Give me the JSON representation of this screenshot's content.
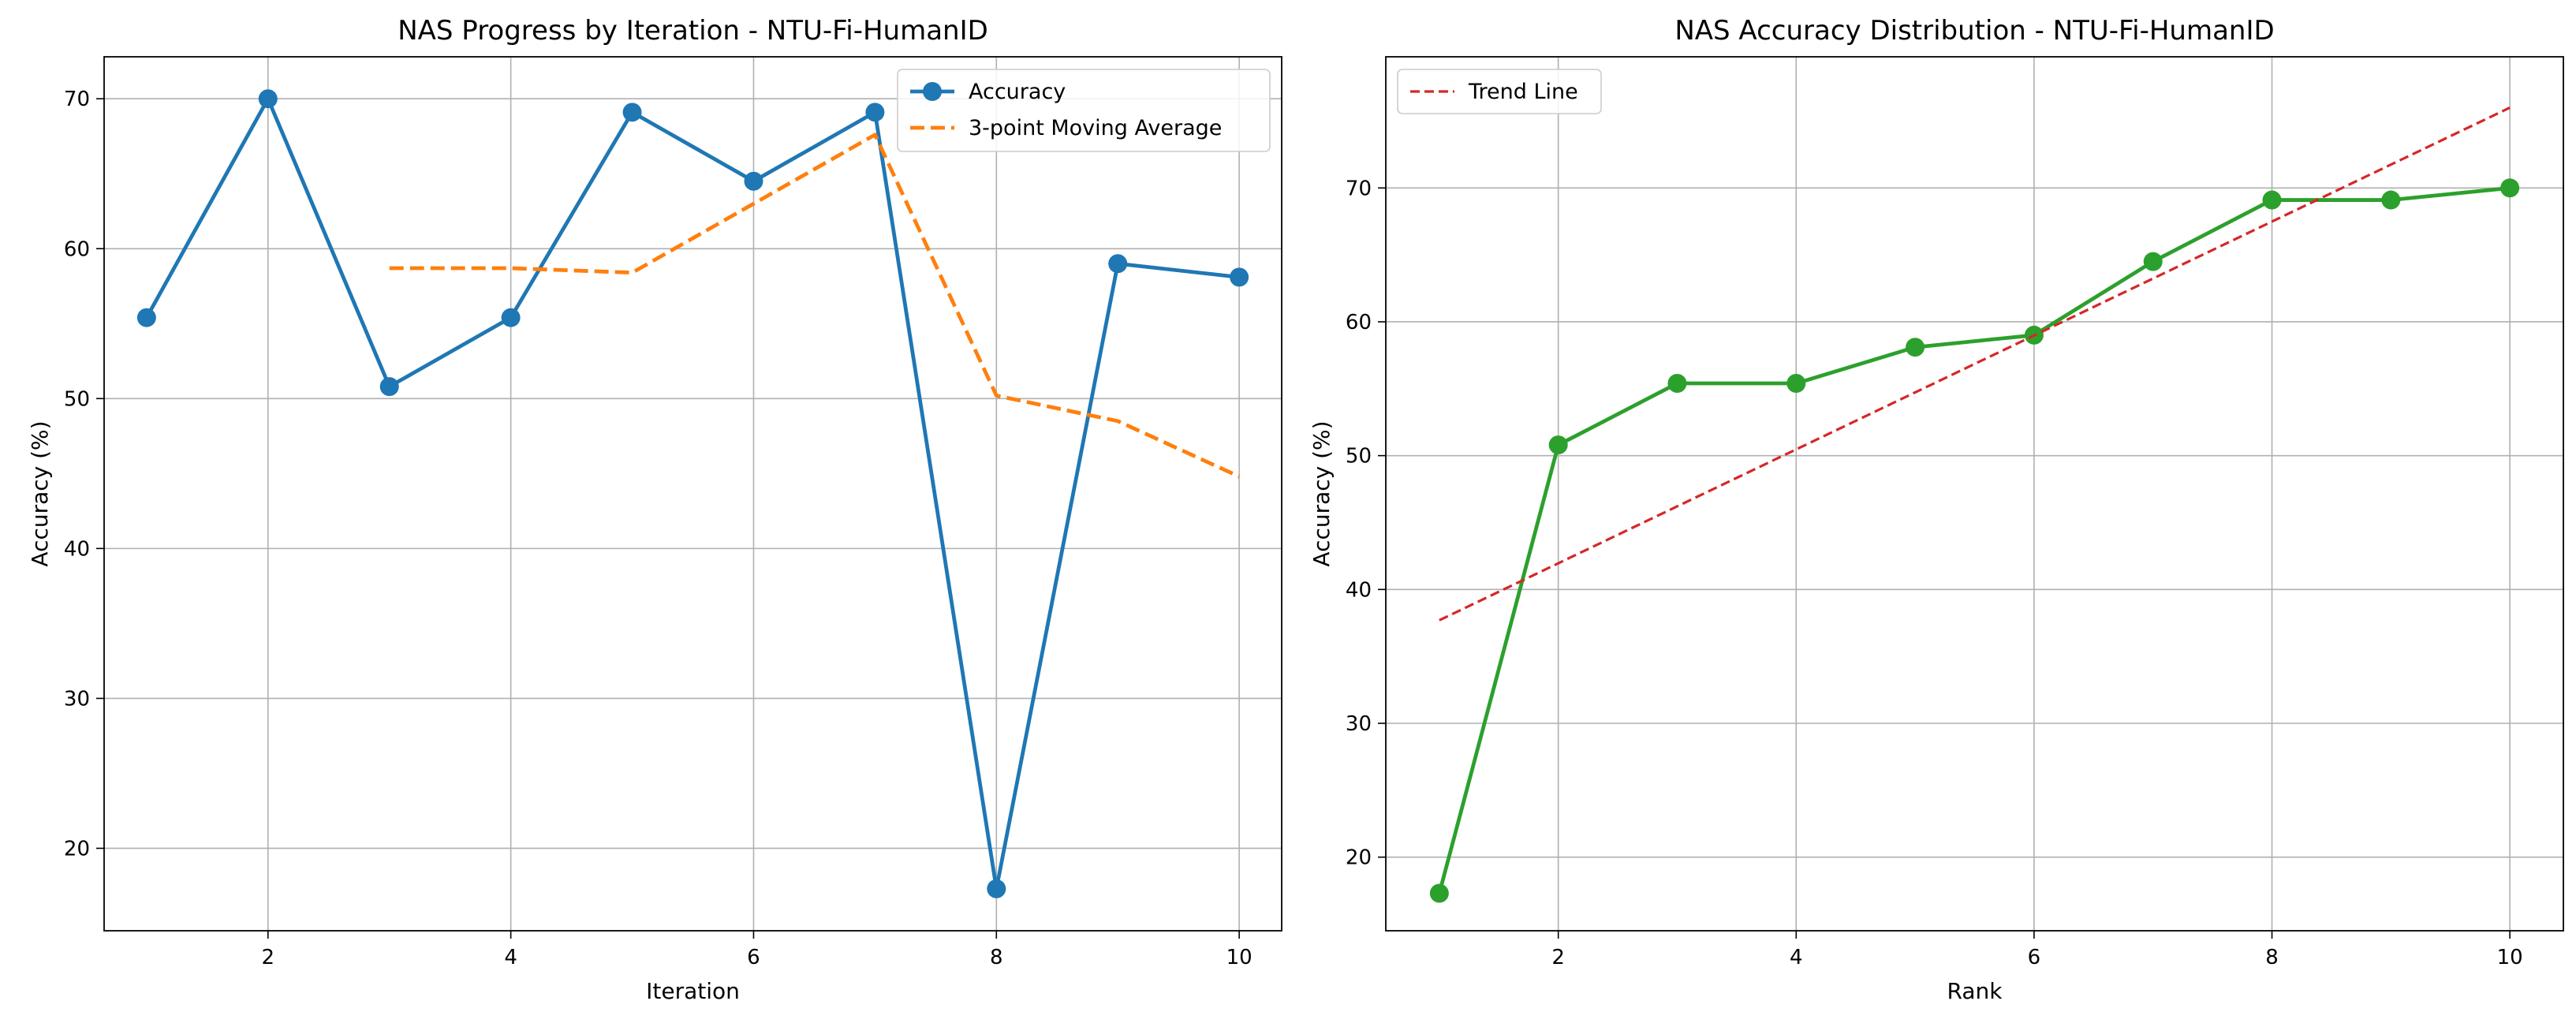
{
  "chart_data": [
    {
      "type": "line",
      "title": "NAS Progress by Iteration - NTU-Fi-HumanID",
      "xlabel": "Iteration",
      "ylabel": "Accuracy (%)",
      "xlim": [
        0.65,
        10.35
      ],
      "ylim": [
        14.5,
        72.8
      ],
      "xticks": [
        2,
        4,
        6,
        8,
        10
      ],
      "yticks": [
        20,
        30,
        40,
        50,
        60,
        70
      ],
      "grid": true,
      "legend_position": "top-right",
      "series": [
        {
          "name": "Accuracy",
          "color": "#1f77b4",
          "style": "solid-marker",
          "x": [
            1,
            2,
            3,
            4,
            5,
            6,
            7,
            8,
            9,
            10
          ],
          "y": [
            55.4,
            70.0,
            50.8,
            55.4,
            69.1,
            64.5,
            69.1,
            17.3,
            59.0,
            58.1
          ]
        },
        {
          "name": "3-point Moving Average",
          "color": "#ff7f0e",
          "style": "dashed",
          "x": [
            3,
            4,
            5,
            6,
            7,
            8,
            9,
            10
          ],
          "y": [
            58.7,
            58.7,
            58.4,
            63.0,
            67.6,
            50.2,
            48.5,
            44.8
          ]
        }
      ]
    },
    {
      "type": "line",
      "title": "NAS Accuracy Distribution - NTU-Fi-HumanID",
      "xlabel": "Rank",
      "ylabel": "Accuracy (%)",
      "xlim": [
        0.55,
        10.45
      ],
      "ylim": [
        14.5,
        79.8
      ],
      "xticks": [
        2,
        4,
        6,
        8,
        10
      ],
      "yticks": [
        20,
        30,
        40,
        50,
        60,
        70
      ],
      "grid": true,
      "legend_position": "top-left",
      "series": [
        {
          "name": "",
          "color": "#2ca02c",
          "style": "solid-marker",
          "x": [
            1,
            2,
            3,
            4,
            5,
            6,
            7,
            8,
            9,
            10
          ],
          "y": [
            17.3,
            50.8,
            55.4,
            55.4,
            58.1,
            59.0,
            64.5,
            69.1,
            69.1,
            70.0
          ]
        },
        {
          "name": "Trend Line",
          "color": "#d62728",
          "style": "dashed-thin",
          "x": [
            1,
            10
          ],
          "y": [
            37.7,
            76.0
          ]
        }
      ]
    }
  ]
}
